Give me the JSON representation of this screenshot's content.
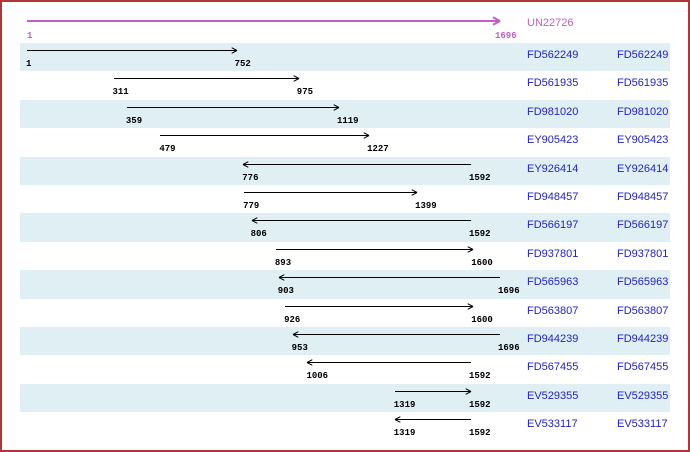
{
  "consensus": {
    "label": "UN22726",
    "start": 1,
    "end": 1696,
    "start_label": "1",
    "end_label": "1696"
  },
  "rows": [
    {
      "accession": "FD562249",
      "start": 1,
      "end": 752,
      "direction": "right"
    },
    {
      "accession": "FD561935",
      "start": 311,
      "end": 975,
      "direction": "right"
    },
    {
      "accession": "FD981020",
      "start": 359,
      "end": 1119,
      "direction": "right"
    },
    {
      "accession": "EY905423",
      "start": 479,
      "end": 1227,
      "direction": "right"
    },
    {
      "accession": "EY926414",
      "start": 776,
      "end": 1592,
      "direction": "left"
    },
    {
      "accession": "FD948457",
      "start": 779,
      "end": 1399,
      "direction": "right"
    },
    {
      "accession": "FD566197",
      "start": 806,
      "end": 1592,
      "direction": "left"
    },
    {
      "accession": "FD937801",
      "start": 893,
      "end": 1600,
      "direction": "right"
    },
    {
      "accession": "FD565963",
      "start": 903,
      "end": 1696,
      "direction": "left"
    },
    {
      "accession": "FD563807",
      "start": 926,
      "end": 1600,
      "direction": "right"
    },
    {
      "accession": "FD944239",
      "start": 953,
      "end": 1696,
      "direction": "left"
    },
    {
      "accession": "FD567455",
      "start": 1006,
      "end": 1592,
      "direction": "left"
    },
    {
      "accession": "EV529355",
      "start": 1319,
      "end": 1592,
      "direction": "right"
    },
    {
      "accession": "EV533117",
      "start": 1319,
      "end": 1592,
      "direction": "left"
    }
  ],
  "colors": {
    "frame_border": "#b43535",
    "band": "#e0eff3",
    "accession_link": "#2222cc",
    "consensus": "#c45fc4",
    "arrow": "#000000"
  }
}
